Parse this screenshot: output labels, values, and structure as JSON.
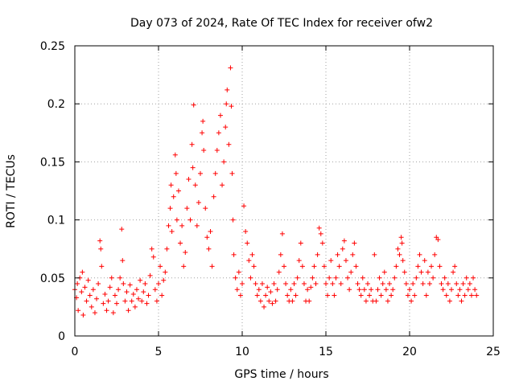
{
  "chart_data": {
    "type": "scatter",
    "title": "Day 073 of 2024, Rate Of TEC Index for receiver ofw2",
    "xlabel": "GPS time / hours",
    "ylabel": "ROTI / TECUs",
    "xlim": [
      0,
      25
    ],
    "ylim": [
      0,
      0.25
    ],
    "x_ticks": [
      0,
      5,
      10,
      15,
      20,
      25
    ],
    "x_tick_labels": [
      "0",
      "5",
      "10",
      "15",
      "20",
      "25"
    ],
    "y_ticks": [
      0,
      0.05,
      0.1,
      0.15,
      0.2,
      0.25
    ],
    "y_tick_labels": [
      "0",
      "0.05",
      "0.1",
      "0.15",
      "0.2",
      "0.25"
    ],
    "grid": true,
    "marker": "+",
    "marker_color": "#ff0000",
    "series": [
      {
        "name": "ROTI",
        "points": [
          [
            0.0,
            0.04
          ],
          [
            0.1,
            0.033
          ],
          [
            0.15,
            0.045
          ],
          [
            0.2,
            0.022
          ],
          [
            0.3,
            0.05
          ],
          [
            0.4,
            0.038
          ],
          [
            0.45,
            0.055
          ],
          [
            0.5,
            0.018
          ],
          [
            0.6,
            0.042
          ],
          [
            0.7,
            0.03
          ],
          [
            0.8,
            0.048
          ],
          [
            0.9,
            0.035
          ],
          [
            1.0,
            0.025
          ],
          [
            1.1,
            0.04
          ],
          [
            1.2,
            0.02
          ],
          [
            1.3,
            0.032
          ],
          [
            1.4,
            0.045
          ],
          [
            1.5,
            0.082
          ],
          [
            1.55,
            0.075
          ],
          [
            1.6,
            0.06
          ],
          [
            1.7,
            0.028
          ],
          [
            1.8,
            0.036
          ],
          [
            1.9,
            0.022
          ],
          [
            2.0,
            0.03
          ],
          [
            2.1,
            0.042
          ],
          [
            2.2,
            0.05
          ],
          [
            2.3,
            0.02
          ],
          [
            2.4,
            0.035
          ],
          [
            2.5,
            0.028
          ],
          [
            2.6,
            0.04
          ],
          [
            2.7,
            0.05
          ],
          [
            2.8,
            0.092
          ],
          [
            2.85,
            0.065
          ],
          [
            2.9,
            0.045
          ],
          [
            3.0,
            0.03
          ],
          [
            3.1,
            0.038
          ],
          [
            3.2,
            0.022
          ],
          [
            3.3,
            0.044
          ],
          [
            3.4,
            0.03
          ],
          [
            3.5,
            0.036
          ],
          [
            3.6,
            0.025
          ],
          [
            3.7,
            0.04
          ],
          [
            3.8,
            0.032
          ],
          [
            3.9,
            0.048
          ],
          [
            4.0,
            0.03
          ],
          [
            4.1,
            0.038
          ],
          [
            4.2,
            0.045
          ],
          [
            4.3,
            0.028
          ],
          [
            4.4,
            0.035
          ],
          [
            4.5,
            0.052
          ],
          [
            4.6,
            0.075
          ],
          [
            4.7,
            0.068
          ],
          [
            4.8,
            0.04
          ],
          [
            4.9,
            0.03
          ],
          [
            5.0,
            0.045
          ],
          [
            5.1,
            0.06
          ],
          [
            5.2,
            0.035
          ],
          [
            5.3,
            0.048
          ],
          [
            5.4,
            0.055
          ],
          [
            5.5,
            0.075
          ],
          [
            5.6,
            0.095
          ],
          [
            5.7,
            0.11
          ],
          [
            5.75,
            0.13
          ],
          [
            5.8,
            0.09
          ],
          [
            5.9,
            0.12
          ],
          [
            6.0,
            0.156
          ],
          [
            6.05,
            0.14
          ],
          [
            6.1,
            0.1
          ],
          [
            6.2,
            0.125
          ],
          [
            6.3,
            0.08
          ],
          [
            6.4,
            0.095
          ],
          [
            6.5,
            0.06
          ],
          [
            6.6,
            0.072
          ],
          [
            6.7,
            0.11
          ],
          [
            6.8,
            0.135
          ],
          [
            6.9,
            0.1
          ],
          [
            7.0,
            0.165
          ],
          [
            7.05,
            0.145
          ],
          [
            7.1,
            0.199
          ],
          [
            7.2,
            0.13
          ],
          [
            7.3,
            0.095
          ],
          [
            7.4,
            0.115
          ],
          [
            7.5,
            0.14
          ],
          [
            7.6,
            0.175
          ],
          [
            7.65,
            0.185
          ],
          [
            7.7,
            0.16
          ],
          [
            7.8,
            0.11
          ],
          [
            7.9,
            0.085
          ],
          [
            8.0,
            0.075
          ],
          [
            8.1,
            0.09
          ],
          [
            8.2,
            0.06
          ],
          [
            8.3,
            0.12
          ],
          [
            8.4,
            0.14
          ],
          [
            8.5,
            0.16
          ],
          [
            8.6,
            0.175
          ],
          [
            8.7,
            0.19
          ],
          [
            8.8,
            0.13
          ],
          [
            8.9,
            0.15
          ],
          [
            9.0,
            0.18
          ],
          [
            9.05,
            0.2
          ],
          [
            9.1,
            0.212
          ],
          [
            9.2,
            0.165
          ],
          [
            9.3,
            0.231
          ],
          [
            9.35,
            0.198
          ],
          [
            9.4,
            0.14
          ],
          [
            9.45,
            0.1
          ],
          [
            9.5,
            0.07
          ],
          [
            9.6,
            0.05
          ],
          [
            9.7,
            0.04
          ],
          [
            9.8,
            0.055
          ],
          [
            9.9,
            0.035
          ],
          [
            10.0,
            0.045
          ],
          [
            10.1,
            0.112
          ],
          [
            10.2,
            0.09
          ],
          [
            10.3,
            0.08
          ],
          [
            10.4,
            0.065
          ],
          [
            10.5,
            0.05
          ],
          [
            10.6,
            0.07
          ],
          [
            10.7,
            0.06
          ],
          [
            10.8,
            0.045
          ],
          [
            10.9,
            0.035
          ],
          [
            11.0,
            0.04
          ],
          [
            11.1,
            0.03
          ],
          [
            11.2,
            0.045
          ],
          [
            11.3,
            0.025
          ],
          [
            11.4,
            0.035
          ],
          [
            11.5,
            0.042
          ],
          [
            11.6,
            0.03
          ],
          [
            11.7,
            0.038
          ],
          [
            11.8,
            0.028
          ],
          [
            11.9,
            0.045
          ],
          [
            12.0,
            0.03
          ],
          [
            12.1,
            0.04
          ],
          [
            12.2,
            0.055
          ],
          [
            12.3,
            0.07
          ],
          [
            12.4,
            0.088
          ],
          [
            12.5,
            0.06
          ],
          [
            12.6,
            0.045
          ],
          [
            12.7,
            0.035
          ],
          [
            12.8,
            0.03
          ],
          [
            12.9,
            0.04
          ],
          [
            13.0,
            0.03
          ],
          [
            13.1,
            0.045
          ],
          [
            13.2,
            0.035
          ],
          [
            13.3,
            0.05
          ],
          [
            13.4,
            0.065
          ],
          [
            13.5,
            0.08
          ],
          [
            13.6,
            0.06
          ],
          [
            13.7,
            0.045
          ],
          [
            13.8,
            0.03
          ],
          [
            13.9,
            0.04
          ],
          [
            14.0,
            0.03
          ],
          [
            14.1,
            0.042
          ],
          [
            14.2,
            0.05
          ],
          [
            14.3,
            0.06
          ],
          [
            14.4,
            0.045
          ],
          [
            14.5,
            0.07
          ],
          [
            14.6,
            0.093
          ],
          [
            14.7,
            0.088
          ],
          [
            14.8,
            0.08
          ],
          [
            14.9,
            0.06
          ],
          [
            15.0,
            0.045
          ],
          [
            15.1,
            0.035
          ],
          [
            15.2,
            0.05
          ],
          [
            15.3,
            0.065
          ],
          [
            15.4,
            0.045
          ],
          [
            15.5,
            0.035
          ],
          [
            15.6,
            0.05
          ],
          [
            15.7,
            0.07
          ],
          [
            15.8,
            0.06
          ],
          [
            15.9,
            0.045
          ],
          [
            16.0,
            0.075
          ],
          [
            16.1,
            0.082
          ],
          [
            16.2,
            0.065
          ],
          [
            16.3,
            0.05
          ],
          [
            16.4,
            0.04
          ],
          [
            16.5,
            0.055
          ],
          [
            16.6,
            0.07
          ],
          [
            16.7,
            0.08
          ],
          [
            16.8,
            0.06
          ],
          [
            16.9,
            0.045
          ],
          [
            17.0,
            0.04
          ],
          [
            17.1,
            0.035
          ],
          [
            17.2,
            0.05
          ],
          [
            17.3,
            0.04
          ],
          [
            17.4,
            0.03
          ],
          [
            17.5,
            0.045
          ],
          [
            17.6,
            0.035
          ],
          [
            17.7,
            0.04
          ],
          [
            17.8,
            0.03
          ],
          [
            17.9,
            0.07
          ],
          [
            18.0,
            0.03
          ],
          [
            18.1,
            0.04
          ],
          [
            18.2,
            0.05
          ],
          [
            18.3,
            0.035
          ],
          [
            18.4,
            0.045
          ],
          [
            18.5,
            0.055
          ],
          [
            18.6,
            0.04
          ],
          [
            18.7,
            0.03
          ],
          [
            18.8,
            0.045
          ],
          [
            18.9,
            0.035
          ],
          [
            19.0,
            0.04
          ],
          [
            19.1,
            0.05
          ],
          [
            19.2,
            0.06
          ],
          [
            19.3,
            0.075
          ],
          [
            19.4,
            0.07
          ],
          [
            19.5,
            0.085
          ],
          [
            19.55,
            0.08
          ],
          [
            19.6,
            0.065
          ],
          [
            19.7,
            0.055
          ],
          [
            19.8,
            0.045
          ],
          [
            19.9,
            0.035
          ],
          [
            20.0,
            0.04
          ],
          [
            20.1,
            0.03
          ],
          [
            20.2,
            0.045
          ],
          [
            20.3,
            0.035
          ],
          [
            20.4,
            0.05
          ],
          [
            20.5,
            0.06
          ],
          [
            20.6,
            0.07
          ],
          [
            20.7,
            0.055
          ],
          [
            20.8,
            0.045
          ],
          [
            20.9,
            0.065
          ],
          [
            21.0,
            0.035
          ],
          [
            21.1,
            0.055
          ],
          [
            21.2,
            0.045
          ],
          [
            21.3,
            0.06
          ],
          [
            21.4,
            0.05
          ],
          [
            21.5,
            0.07
          ],
          [
            21.6,
            0.085
          ],
          [
            21.7,
            0.083
          ],
          [
            21.8,
            0.06
          ],
          [
            21.9,
            0.045
          ],
          [
            22.0,
            0.04
          ],
          [
            22.1,
            0.05
          ],
          [
            22.2,
            0.035
          ],
          [
            22.3,
            0.045
          ],
          [
            22.4,
            0.03
          ],
          [
            22.5,
            0.04
          ],
          [
            22.6,
            0.055
          ],
          [
            22.7,
            0.06
          ],
          [
            22.8,
            0.045
          ],
          [
            22.9,
            0.035
          ],
          [
            23.0,
            0.04
          ],
          [
            23.1,
            0.03
          ],
          [
            23.2,
            0.045
          ],
          [
            23.3,
            0.035
          ],
          [
            23.4,
            0.05
          ],
          [
            23.5,
            0.04
          ],
          [
            23.6,
            0.045
          ],
          [
            23.7,
            0.035
          ],
          [
            23.8,
            0.05
          ],
          [
            23.9,
            0.04
          ],
          [
            24.0,
            0.035
          ]
        ]
      }
    ]
  }
}
